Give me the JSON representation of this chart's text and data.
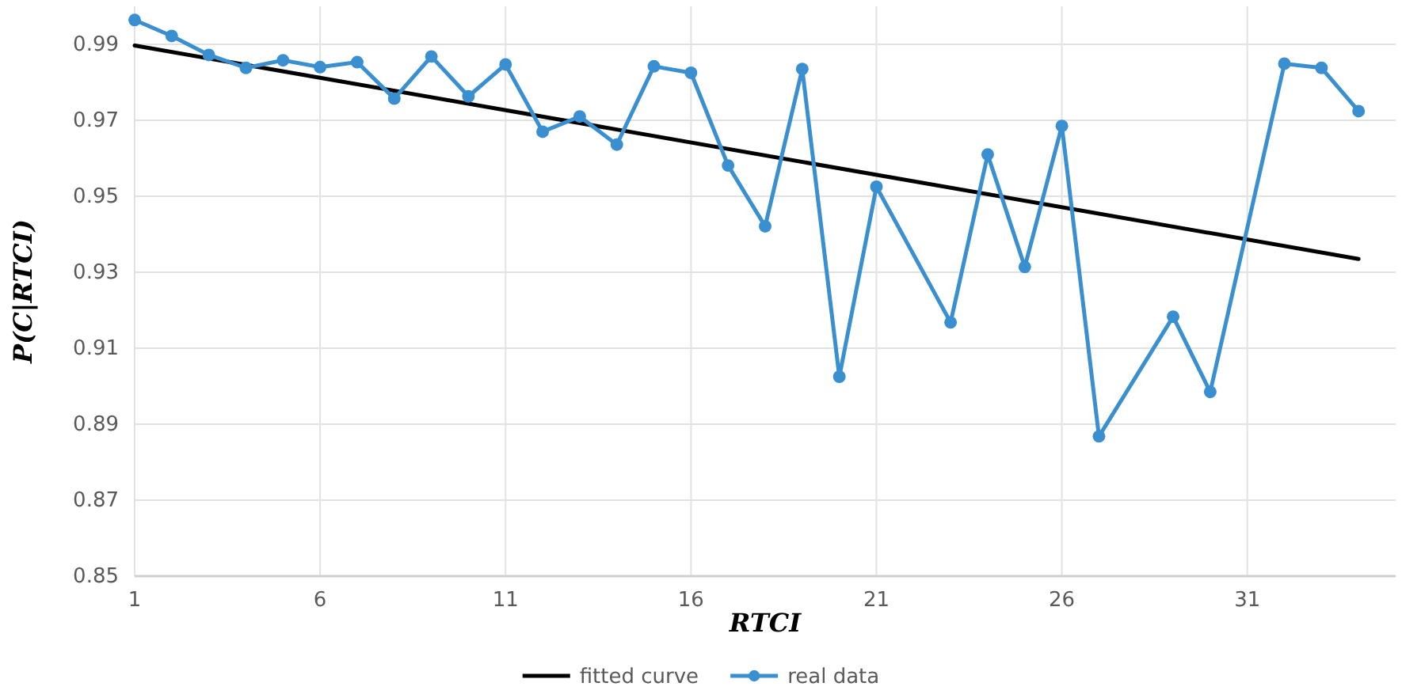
{
  "chart_data": {
    "type": "line",
    "xlabel": "RTCI",
    "ylabel": "P(C|RTCI)",
    "xlim": [
      1,
      35
    ],
    "xticks": [
      1,
      6,
      11,
      16,
      21,
      26,
      31
    ],
    "ylim": [
      0.85,
      1.0
    ],
    "yticks": [
      0.85,
      0.87,
      0.89,
      0.91,
      0.93,
      0.95,
      0.97,
      0.99
    ],
    "grid": true,
    "legend": "bottom",
    "series": [
      {
        "name": "fitted curve",
        "color": "#000000",
        "marker": "none",
        "x": [
          1,
          34
        ],
        "values": [
          0.9897,
          0.9335
        ]
      },
      {
        "name": "real data",
        "color": "#3a8fd0",
        "marker": "circle",
        "x": [
          1,
          2,
          3,
          4,
          5,
          6,
          7,
          8,
          9,
          10,
          11,
          12,
          13,
          14,
          15,
          16,
          17,
          18,
          19,
          20,
          21,
          23,
          24,
          25,
          26,
          27,
          29,
          30,
          32,
          33,
          34
        ],
        "values": [
          0.9964,
          0.9922,
          0.9872,
          0.9838,
          0.9858,
          0.984,
          0.9853,
          0.9757,
          0.9868,
          0.9763,
          0.9847,
          0.967,
          0.971,
          0.9636,
          0.9842,
          0.9825,
          0.9581,
          0.9421,
          0.9835,
          0.9025,
          0.9525,
          0.9168,
          0.961,
          0.9314,
          0.9685,
          0.8868,
          0.9183,
          0.8985,
          0.9849,
          0.9838,
          0.9724
        ]
      }
    ]
  }
}
